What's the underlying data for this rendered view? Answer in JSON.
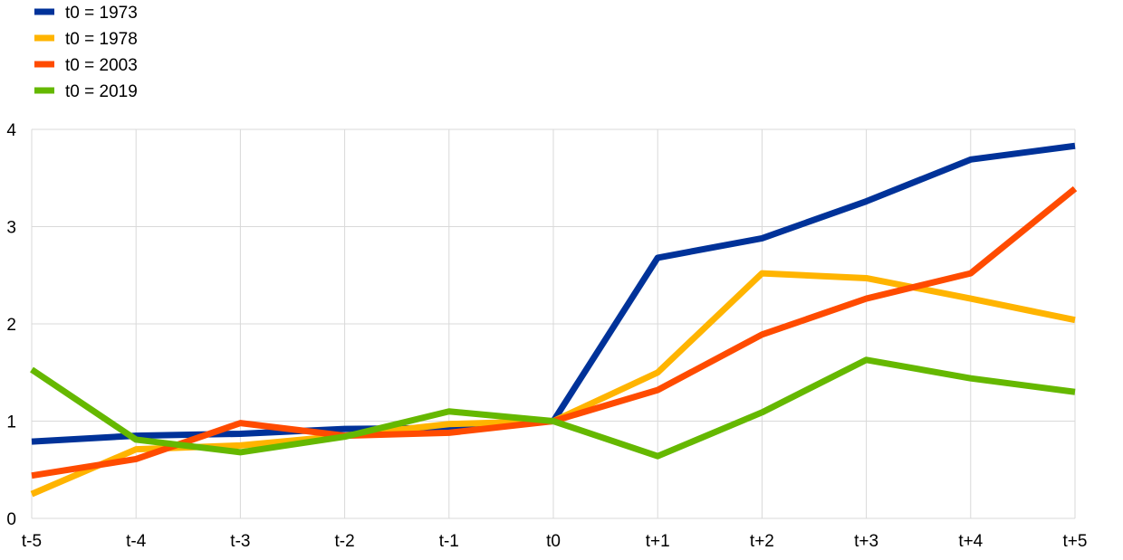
{
  "chart_data": {
    "type": "line",
    "categories": [
      "t-5",
      "t-4",
      "t-3",
      "t-2",
      "t-1",
      "t0",
      "t+1",
      "t+2",
      "t+3",
      "t+4",
      "t+5"
    ],
    "ylim": [
      0,
      4
    ],
    "yticks": [
      0,
      1,
      2,
      3,
      4
    ],
    "grid": true,
    "legend_position": "top-left",
    "series": [
      {
        "name": "t0 = 1973",
        "color": "#003299",
        "values": [
          0.79,
          0.85,
          0.87,
          0.92,
          0.93,
          1.0,
          2.68,
          2.88,
          3.26,
          3.69,
          3.83
        ]
      },
      {
        "name": "t0 = 1978",
        "color": "#ffb400",
        "values": [
          0.25,
          0.71,
          0.75,
          0.85,
          0.97,
          1.0,
          1.5,
          2.52,
          2.47,
          2.26,
          2.04
        ]
      },
      {
        "name": "t0 = 2003",
        "color": "#ff4b00",
        "values": [
          0.44,
          0.61,
          0.98,
          0.85,
          0.88,
          1.0,
          1.32,
          1.89,
          2.26,
          2.52,
          3.39
        ]
      },
      {
        "name": "t0 = 2019",
        "color": "#65b800",
        "values": [
          1.53,
          0.81,
          0.68,
          0.84,
          1.1,
          1.0,
          0.64,
          1.09,
          1.63,
          1.44,
          1.3
        ]
      }
    ]
  }
}
